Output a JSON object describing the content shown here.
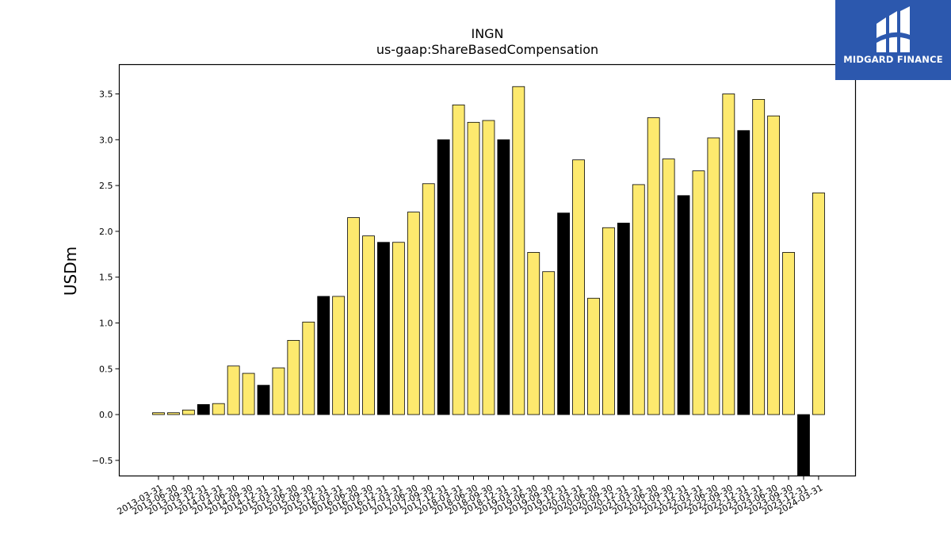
{
  "brand": {
    "name": "MIDGARD FINANCE",
    "bg_color": "#2c58ae"
  },
  "chart_data": {
    "type": "bar",
    "title": "INGN",
    "subtitle": "us-gaap:ShareBasedCompensation",
    "ylabel": "USDm",
    "xlabel": "",
    "ylim": [
      -0.67,
      3.82
    ],
    "yticks": [
      -0.5,
      0.0,
      0.5,
      1.0,
      1.5,
      2.0,
      2.5,
      3.0,
      3.5
    ],
    "ytick_labels": [
      "−0.5",
      "0.0",
      "0.5",
      "1.0",
      "1.5",
      "2.0",
      "2.5",
      "3.0",
      "3.5"
    ],
    "grid": false,
    "colors": {
      "quarter": "#fde96e",
      "year_end": "#000000",
      "edge": "#000000"
    },
    "categories": [
      "2013-03-31",
      "2013-06-30",
      "2013-09-30",
      "2013-12-31",
      "2014-03-31",
      "2014-06-30",
      "2014-09-30",
      "2014-12-31",
      "2015-03-31",
      "2015-06-30",
      "2015-09-30",
      "2015-12-31",
      "2016-03-31",
      "2016-06-30",
      "2016-09-30",
      "2016-12-31",
      "2017-03-31",
      "2017-06-30",
      "2017-09-30",
      "2017-12-31",
      "2018-03-31",
      "2018-06-30",
      "2018-09-30",
      "2018-12-31",
      "2019-03-31",
      "2019-06-30",
      "2019-09-30",
      "2019-12-31",
      "2020-03-31",
      "2020-06-30",
      "2020-09-30",
      "2020-12-31",
      "2021-03-31",
      "2021-06-30",
      "2021-09-30",
      "2021-12-31",
      "2022-03-31",
      "2022-06-30",
      "2022-09-30",
      "2022-12-31",
      "2023-03-31",
      "2023-06-30",
      "2023-09-30",
      "2023-12-31",
      "2024-03-31"
    ],
    "values": [
      0.02,
      0.02,
      0.05,
      0.11,
      0.12,
      0.53,
      0.45,
      0.32,
      0.51,
      0.81,
      1.01,
      1.29,
      1.29,
      2.15,
      1.95,
      1.88,
      1.88,
      2.21,
      2.52,
      3.0,
      3.38,
      3.19,
      3.21,
      3.0,
      3.58,
      1.77,
      1.56,
      2.2,
      2.78,
      1.27,
      2.04,
      2.09,
      2.51,
      3.24,
      2.79,
      2.39,
      2.66,
      3.02,
      3.5,
      3.1,
      3.44,
      3.26,
      1.77,
      -0.68,
      2.42
    ],
    "fill_types": [
      "quarter",
      "quarter",
      "quarter",
      "year_end",
      "quarter",
      "quarter",
      "quarter",
      "year_end",
      "quarter",
      "quarter",
      "quarter",
      "year_end",
      "quarter",
      "quarter",
      "quarter",
      "year_end",
      "quarter",
      "quarter",
      "quarter",
      "year_end",
      "quarter",
      "quarter",
      "quarter",
      "year_end",
      "quarter",
      "quarter",
      "quarter",
      "year_end",
      "quarter",
      "quarter",
      "quarter",
      "year_end",
      "quarter",
      "quarter",
      "quarter",
      "year_end",
      "quarter",
      "quarter",
      "quarter",
      "year_end",
      "quarter",
      "quarter",
      "quarter",
      "year_end",
      "quarter"
    ]
  }
}
